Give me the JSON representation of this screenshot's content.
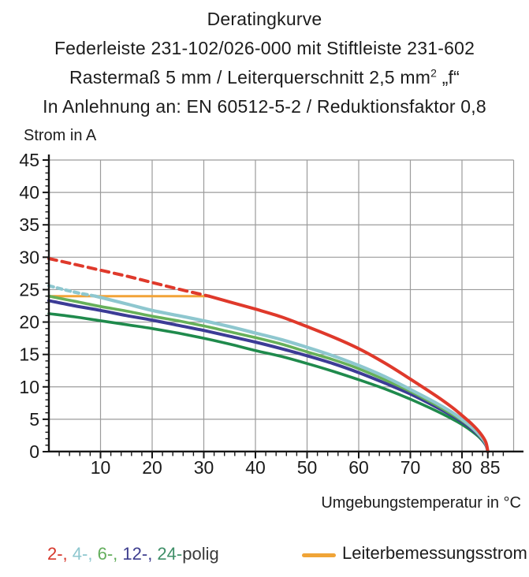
{
  "title": {
    "line1": "Deratingkurve",
    "line2": "Federleiste 231-102/026-000 mit Stiftleiste 231-602",
    "line3_pre": "Rastermaß 5 mm / Leiterquerschnitt 2,5 mm",
    "line3_sup": "2",
    "line3_post": " „f“",
    "line4": "In Anlehnung an: EN 60512-5-2 / Reduktionsfaktor 0,8"
  },
  "chart_data": {
    "type": "line",
    "title": "Deratingkurve",
    "xlabel": "Umgebungstemperatur in °C",
    "ylabel": "Strom in A",
    "xlim": [
      0,
      90
    ],
    "ylim": [
      0,
      45
    ],
    "x_major_ticks": [
      10,
      20,
      30,
      40,
      50,
      60,
      70,
      80,
      85
    ],
    "x_minor_step": 2,
    "y_major_step": 5,
    "y_minor_step": 1,
    "grid": {
      "x_step": 10,
      "y_step": 5,
      "color": "#9b9b9b",
      "on": true
    },
    "axis_color": "#151515",
    "tick_label_color": "#1a1a1a",
    "series": [
      {
        "name": "2-polig",
        "color": "#df392b",
        "width": 4.0,
        "dashed_until_x": 31,
        "dash": "10 7",
        "points": [
          [
            0,
            29.8
          ],
          [
            5,
            28.9
          ],
          [
            10,
            28.0
          ],
          [
            15,
            27.1
          ],
          [
            20,
            26.1
          ],
          [
            25,
            25.1
          ],
          [
            31,
            24.0
          ],
          [
            35,
            23.1
          ],
          [
            40,
            22.0
          ],
          [
            45,
            20.8
          ],
          [
            50,
            19.3
          ],
          [
            55,
            17.7
          ],
          [
            60,
            15.9
          ],
          [
            65,
            13.7
          ],
          [
            70,
            11.2
          ],
          [
            75,
            8.6
          ],
          [
            78,
            6.9
          ],
          [
            80,
            5.6
          ],
          [
            82,
            4.2
          ],
          [
            83.5,
            2.9
          ],
          [
            84.6,
            1.5
          ],
          [
            85,
            0
          ]
        ]
      },
      {
        "name": "4-polig",
        "color": "#8ec7cf",
        "width": 4.2,
        "dashed_until_x": 9,
        "dash": "6 5",
        "points": [
          [
            0,
            25.6
          ],
          [
            5,
            24.6
          ],
          [
            9,
            24.0
          ],
          [
            15,
            22.8
          ],
          [
            20,
            21.8
          ],
          [
            25,
            21.0
          ],
          [
            30,
            20.2
          ],
          [
            35,
            19.3
          ],
          [
            40,
            18.3
          ],
          [
            45,
            17.3
          ],
          [
            50,
            16.1
          ],
          [
            55,
            14.8
          ],
          [
            60,
            13.3
          ],
          [
            65,
            11.6
          ],
          [
            70,
            9.6
          ],
          [
            75,
            7.5
          ],
          [
            78,
            6.1
          ],
          [
            80,
            5.0
          ],
          [
            82,
            3.7
          ],
          [
            83.5,
            2.5
          ],
          [
            84.6,
            1.3
          ],
          [
            85,
            0
          ]
        ]
      },
      {
        "name": "6-polig",
        "color": "#66b059",
        "width": 3.6,
        "points": [
          [
            0,
            24.0
          ],
          [
            5,
            23.2
          ],
          [
            10,
            22.4
          ],
          [
            15,
            21.7
          ],
          [
            20,
            20.9
          ],
          [
            25,
            20.2
          ],
          [
            30,
            19.4
          ],
          [
            35,
            18.5
          ],
          [
            40,
            17.6
          ],
          [
            45,
            16.6
          ],
          [
            50,
            15.4
          ],
          [
            55,
            14.2
          ],
          [
            60,
            12.8
          ],
          [
            65,
            11.1
          ],
          [
            70,
            9.3
          ],
          [
            75,
            7.2
          ],
          [
            78,
            5.8
          ],
          [
            80,
            4.8
          ],
          [
            82,
            3.6
          ],
          [
            83.5,
            2.4
          ],
          [
            84.6,
            1.2
          ],
          [
            85,
            0
          ]
        ]
      },
      {
        "name": "12-polig",
        "color": "#3c3c96",
        "width": 4.0,
        "points": [
          [
            0,
            23.3
          ],
          [
            5,
            22.5
          ],
          [
            10,
            21.8
          ],
          [
            15,
            21.0
          ],
          [
            20,
            20.3
          ],
          [
            25,
            19.5
          ],
          [
            30,
            18.7
          ],
          [
            35,
            17.8
          ],
          [
            40,
            16.9
          ],
          [
            45,
            15.9
          ],
          [
            50,
            14.8
          ],
          [
            55,
            13.6
          ],
          [
            60,
            12.2
          ],
          [
            65,
            10.6
          ],
          [
            70,
            8.9
          ],
          [
            75,
            6.9
          ],
          [
            78,
            5.6
          ],
          [
            80,
            4.6
          ],
          [
            82,
            3.4
          ],
          [
            83.5,
            2.3
          ],
          [
            84.6,
            1.1
          ],
          [
            85,
            0
          ]
        ]
      },
      {
        "name": "24-polig",
        "color": "#1f8a4c",
        "width": 3.6,
        "points": [
          [
            0,
            21.3
          ],
          [
            5,
            20.8
          ],
          [
            10,
            20.2
          ],
          [
            15,
            19.6
          ],
          [
            20,
            19.0
          ],
          [
            25,
            18.3
          ],
          [
            30,
            17.5
          ],
          [
            35,
            16.6
          ],
          [
            40,
            15.6
          ],
          [
            45,
            14.7
          ],
          [
            50,
            13.6
          ],
          [
            55,
            12.4
          ],
          [
            60,
            11.1
          ],
          [
            65,
            9.7
          ],
          [
            70,
            8.1
          ],
          [
            75,
            6.3
          ],
          [
            78,
            5.1
          ],
          [
            80,
            4.2
          ],
          [
            82,
            3.1
          ],
          [
            83.5,
            2.1
          ],
          [
            84.6,
            1.0
          ],
          [
            85,
            0
          ]
        ]
      },
      {
        "name": "Leiterbemessungsstrom",
        "color": "#f2a338",
        "width": 3.0,
        "points": [
          [
            0,
            24
          ],
          [
            31,
            24
          ]
        ]
      }
    ]
  },
  "legend": {
    "poles_parts": [
      {
        "text": "2-, ",
        "color": "#d6382c"
      },
      {
        "text": "4-, ",
        "color": "#8ec7cf"
      },
      {
        "text": "6-, ",
        "color": "#63ae5c"
      },
      {
        "text": "12-, ",
        "color": "#3d3d8e"
      },
      {
        "text": "24-",
        "color": "#3f8f68"
      },
      {
        "text": "polig",
        "color": "#3a3a3a"
      }
    ],
    "rating_label": "Leiterbemessungsstrom",
    "rating_color": "#f0a437"
  }
}
